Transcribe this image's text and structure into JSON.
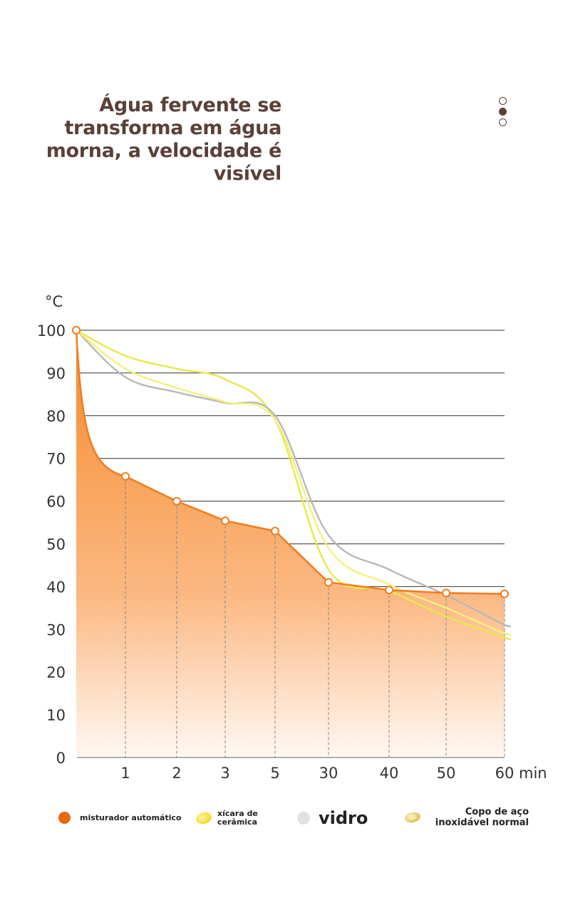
{
  "title": "Água fervente se transforma em água morna, a velocidade é visível",
  "pager": [
    {
      "active": false
    },
    {
      "active": true
    },
    {
      "active": false
    }
  ],
  "chart_data": {
    "type": "line",
    "ylabel": "°C",
    "xunit": "min",
    "categories": [
      "0",
      "1",
      "2",
      "3",
      "5",
      "30",
      "40",
      "50",
      "60"
    ],
    "ylim": [
      0,
      100
    ],
    "yticks": [
      0,
      10,
      20,
      30,
      40,
      50,
      60,
      70,
      80,
      90,
      100
    ],
    "grid": true,
    "legend_position": "bottom",
    "series": [
      {
        "name": "misturador automático",
        "color": "#f07d1e",
        "style": "area-markers",
        "values": [
          100,
          65.8,
          60,
          55.4,
          53,
          41,
          39.2,
          38.5,
          38.3
        ]
      },
      {
        "name": "xícara de cerâmica",
        "color": "#e8e84a",
        "style": "line",
        "values": [
          100,
          94,
          91,
          88.5,
          79,
          44,
          39,
          33,
          28
        ]
      },
      {
        "name": "vidro",
        "color": "#b8b8b8",
        "style": "line",
        "values": [
          100,
          89,
          85.5,
          83,
          80,
          52,
          44,
          38,
          31
        ]
      },
      {
        "name": "Copo de aço inoxidável normal",
        "color": "#f5f07a",
        "style": "line",
        "values": [
          100,
          91,
          86.5,
          83.2,
          79,
          49,
          40.5,
          35,
          29
        ]
      }
    ]
  }
}
